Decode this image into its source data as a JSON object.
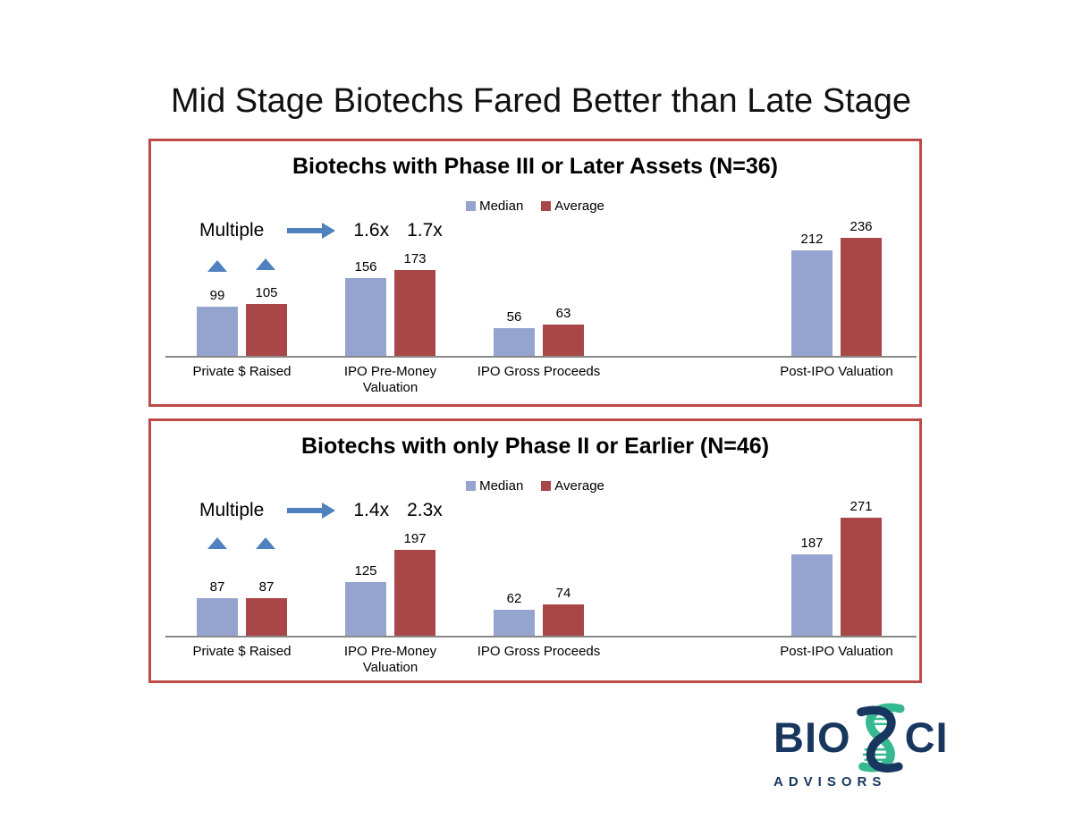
{
  "page": {
    "title": "Mid Stage Biotechs Fared Better than Late Stage"
  },
  "colors": {
    "median_bar": "#95A4CE",
    "average_bar": "#A94648",
    "box_border": "#BE4B48",
    "arrow_blue": "#4E81BD",
    "logo_navy": "#17375E",
    "logo_teal": "#36B890"
  },
  "logo": {
    "word_start": "BIO",
    "word_end": "CI",
    "subtitle": "ADVISORS",
    "helix_icon": "dna-helix-s"
  },
  "chart_data": [
    {
      "type": "bar",
      "title": "Biotechs with Phase III or Later Assets (N=36)",
      "legend_position": "top",
      "categories": [
        "Private $ Raised",
        "IPO Pre-Money Valuation",
        "IPO Gross Proceeds",
        "Post-IPO Valuation"
      ],
      "series": [
        {
          "name": "Median",
          "values": [
            99,
            156,
            56,
            212
          ]
        },
        {
          "name": "Average",
          "values": [
            105,
            173,
            63,
            236
          ]
        }
      ],
      "data_labels": true,
      "y_axis_visible": false,
      "annotation": {
        "label": "Multiple",
        "multiples": [
          "1.6x",
          "1.7x"
        ]
      }
    },
    {
      "type": "bar",
      "title": "Biotechs with only Phase II or Earlier (N=46)",
      "legend_position": "top",
      "categories": [
        "Private $ Raised",
        "IPO Pre-Money Valuation",
        "IPO Gross Proceeds",
        "Post-IPO Valuation"
      ],
      "series": [
        {
          "name": "Median",
          "values": [
            87,
            125,
            62,
            187
          ]
        },
        {
          "name": "Average",
          "values": [
            87,
            197,
            74,
            271
          ]
        }
      ],
      "data_labels": true,
      "y_axis_visible": false,
      "annotation": {
        "label": "Multiple",
        "multiples": [
          "1.4x",
          "2.3x"
        ]
      }
    }
  ]
}
